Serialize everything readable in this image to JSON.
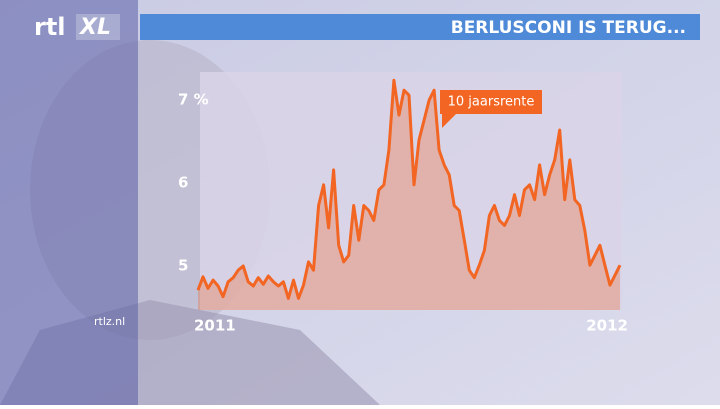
{
  "logo": {
    "brand": "rtl",
    "suffix": "XL"
  },
  "source": "rtlz.nl",
  "chart_data": {
    "type": "area",
    "title": "BERLUSCONI IS TERUG...",
    "annotation": "10 jaarsrente",
    "color": "#f26522",
    "categories": [
      "2011",
      null,
      null,
      null,
      null,
      null,
      null,
      null,
      null,
      null,
      null,
      null,
      null,
      null,
      null,
      null,
      null,
      null,
      null,
      null,
      null,
      null,
      null,
      null,
      null,
      null,
      null,
      null,
      null,
      null,
      null,
      null,
      null,
      null,
      null,
      null,
      null,
      null,
      null,
      null,
      null,
      null,
      null,
      null,
      null,
      null,
      null,
      null,
      null,
      null,
      null,
      null,
      null,
      null,
      null,
      null,
      null,
      null,
      null,
      null,
      null,
      null,
      null,
      null,
      null,
      null,
      null,
      null,
      null,
      null,
      null,
      null,
      null,
      null,
      null,
      null,
      null,
      null,
      null,
      null,
      null,
      null,
      null,
      null,
      "2012"
    ],
    "values": [
      4.71,
      4.87,
      4.73,
      4.83,
      4.76,
      4.63,
      4.81,
      4.86,
      4.95,
      5.0,
      4.81,
      4.76,
      4.86,
      4.78,
      4.88,
      4.81,
      4.76,
      4.81,
      4.61,
      4.83,
      4.61,
      4.77,
      5.05,
      4.95,
      5.73,
      5.98,
      5.46,
      6.16,
      5.25,
      5.05,
      5.13,
      5.73,
      5.31,
      5.73,
      5.67,
      5.55,
      5.92,
      5.98,
      6.4,
      7.24,
      6.82,
      7.12,
      7.06,
      5.98,
      6.52,
      6.76,
      7.0,
      7.12,
      6.4,
      6.22,
      6.1,
      5.73,
      5.67,
      5.31,
      4.95,
      4.86,
      5.01,
      5.19,
      5.61,
      5.73,
      5.55,
      5.49,
      5.61,
      5.86,
      5.61,
      5.92,
      5.98,
      5.8,
      6.22,
      5.86,
      6.1,
      6.28,
      6.64,
      5.8,
      6.28,
      5.8,
      5.73,
      5.43,
      5.01,
      5.13,
      5.25,
      5.01,
      4.77,
      4.89,
      5.01
    ],
    "ylim": [
      4.47,
      7.34
    ],
    "yticks": [
      5,
      6,
      {
        "value": 7,
        "label": "7 %"
      }
    ]
  }
}
